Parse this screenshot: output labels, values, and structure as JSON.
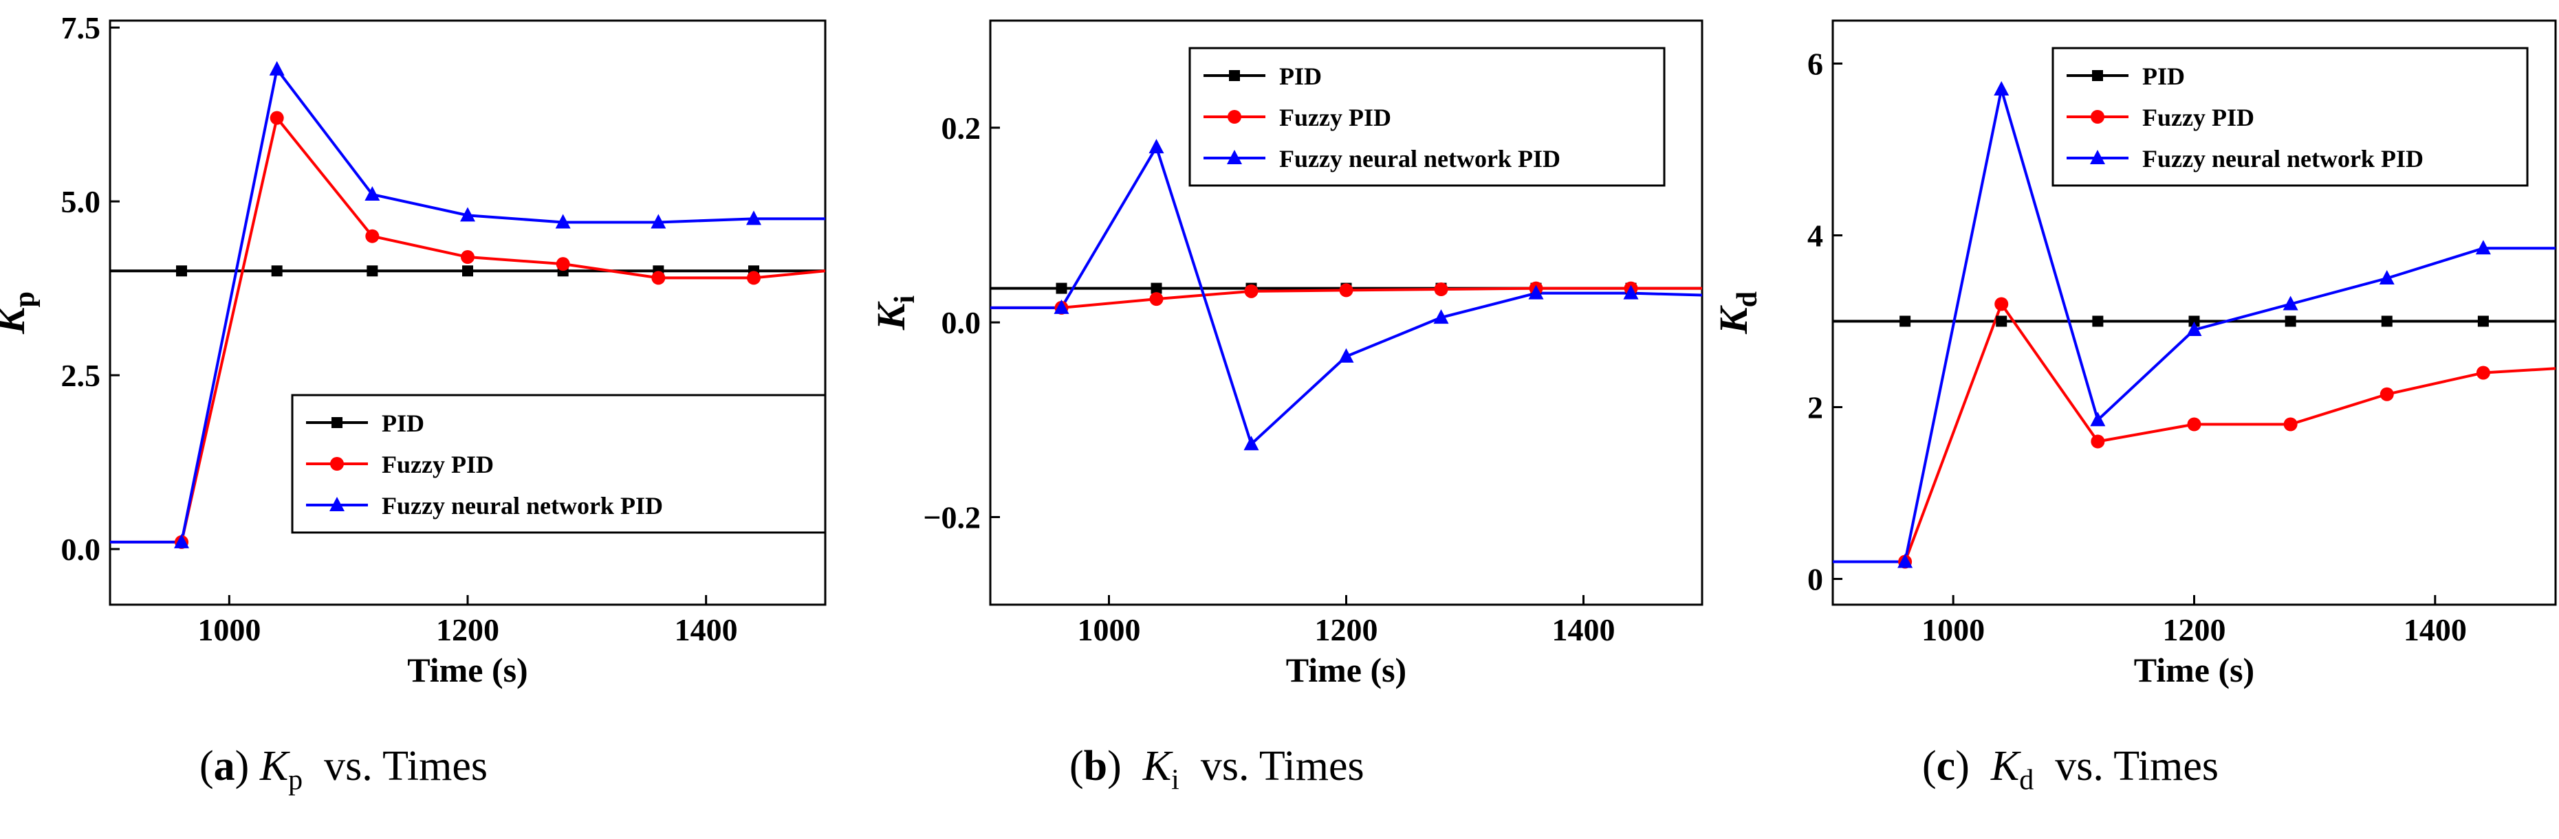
{
  "chart_data": [
    {
      "id": "a",
      "type": "line",
      "xlabel": "Time (s)",
      "ylabel_main": "K",
      "ylabel_sub": "p",
      "xlim": [
        900,
        1500
      ],
      "ylim": [
        -0.8,
        7.6
      ],
      "xticks": [
        1000,
        1200,
        1400
      ],
      "yticks": [
        0.0,
        2.5,
        5.0,
        7.5
      ],
      "ytick_labels": [
        "0.0",
        "2.5",
        "5.0",
        "7.5"
      ],
      "legend_position": "bottom-right",
      "series": [
        {
          "name": "PID",
          "color": "#000000",
          "marker": "square",
          "x": [
            900,
            960,
            1040,
            1120,
            1200,
            1280,
            1360,
            1440,
            1500
          ],
          "y": [
            4.0,
            4.0,
            4.0,
            4.0,
            4.0,
            4.0,
            4.0,
            4.0,
            4.0
          ]
        },
        {
          "name": "Fuzzy PID",
          "color": "#ff0000",
          "marker": "circle",
          "x": [
            900,
            960,
            1040,
            1120,
            1200,
            1280,
            1360,
            1440,
            1500
          ],
          "y": [
            0.1,
            0.1,
            6.2,
            4.5,
            4.2,
            4.1,
            3.9,
            3.9,
            4.0
          ]
        },
        {
          "name": "Fuzzy neural network PID",
          "color": "#0000ff",
          "marker": "triangle",
          "x": [
            900,
            960,
            1040,
            1120,
            1200,
            1280,
            1360,
            1440,
            1500
          ],
          "y": [
            0.1,
            0.1,
            6.9,
            5.1,
            4.8,
            4.7,
            4.7,
            4.75,
            4.75
          ]
        }
      ]
    },
    {
      "id": "b",
      "type": "line",
      "xlabel": "Time (s)",
      "ylabel_main": "K",
      "ylabel_sub": "i",
      "xlim": [
        900,
        1500
      ],
      "ylim": [
        -0.29,
        0.31
      ],
      "xticks": [
        1000,
        1200,
        1400
      ],
      "yticks": [
        -0.2,
        0.0,
        0.2
      ],
      "ytick_labels": [
        "−0.2",
        "0.0",
        "0.2"
      ],
      "legend_position": "top-right",
      "series": [
        {
          "name": "PID",
          "color": "#000000",
          "marker": "square",
          "x": [
            900,
            960,
            1040,
            1120,
            1200,
            1280,
            1360,
            1440,
            1500
          ],
          "y": [
            0.035,
            0.035,
            0.035,
            0.035,
            0.035,
            0.035,
            0.035,
            0.035,
            0.035
          ]
        },
        {
          "name": "Fuzzy PID",
          "color": "#ff0000",
          "marker": "circle",
          "x": [
            900,
            960,
            1040,
            1120,
            1200,
            1280,
            1360,
            1440,
            1500
          ],
          "y": [
            0.015,
            0.015,
            0.024,
            0.032,
            0.033,
            0.034,
            0.035,
            0.035,
            0.035
          ]
        },
        {
          "name": "Fuzzy neural network PID",
          "color": "#0000ff",
          "marker": "triangle",
          "x": [
            900,
            960,
            1040,
            1120,
            1200,
            1280,
            1360,
            1440,
            1500
          ],
          "y": [
            0.015,
            0.015,
            0.18,
            -0.125,
            -0.035,
            0.005,
            0.03,
            0.03,
            0.028
          ]
        }
      ]
    },
    {
      "id": "c",
      "type": "line",
      "xlabel": "Time (s)",
      "ylabel_main": "K",
      "ylabel_sub": "d",
      "xlim": [
        900,
        1500
      ],
      "ylim": [
        -0.3,
        6.5
      ],
      "xticks": [
        1000,
        1200,
        1400
      ],
      "yticks": [
        0,
        2,
        4,
        6
      ],
      "ytick_labels": [
        "0",
        "2",
        "4",
        "6"
      ],
      "legend_position": "top-right",
      "series": [
        {
          "name": "PID",
          "color": "#000000",
          "marker": "square",
          "x": [
            900,
            960,
            1040,
            1120,
            1200,
            1280,
            1360,
            1440,
            1500
          ],
          "y": [
            3.0,
            3.0,
            3.0,
            3.0,
            3.0,
            3.0,
            3.0,
            3.0,
            3.0
          ]
        },
        {
          "name": "Fuzzy PID",
          "color": "#ff0000",
          "marker": "circle",
          "x": [
            900,
            960,
            1040,
            1120,
            1200,
            1280,
            1360,
            1440,
            1500
          ],
          "y": [
            0.2,
            0.2,
            3.2,
            1.6,
            1.8,
            1.8,
            2.15,
            2.4,
            2.45
          ]
        },
        {
          "name": "Fuzzy neural network PID",
          "color": "#0000ff",
          "marker": "triangle",
          "x": [
            900,
            960,
            1040,
            1120,
            1200,
            1280,
            1360,
            1440,
            1500
          ],
          "y": [
            0.2,
            0.2,
            5.7,
            1.85,
            2.9,
            3.2,
            3.5,
            3.85,
            3.85
          ]
        }
      ]
    }
  ],
  "captions": [
    {
      "label": "a",
      "open": "(",
      "close": ")",
      "symbol": "K",
      "sub": "p",
      "text": "vs. Times"
    },
    {
      "label": "b",
      "open": "(",
      "close": ")",
      "symbol": "K",
      "sub": "i",
      "text": "vs. Times"
    },
    {
      "label": "c",
      "open": "(",
      "close": ")",
      "symbol": "K",
      "sub": "d",
      "text": "vs. Times"
    }
  ]
}
